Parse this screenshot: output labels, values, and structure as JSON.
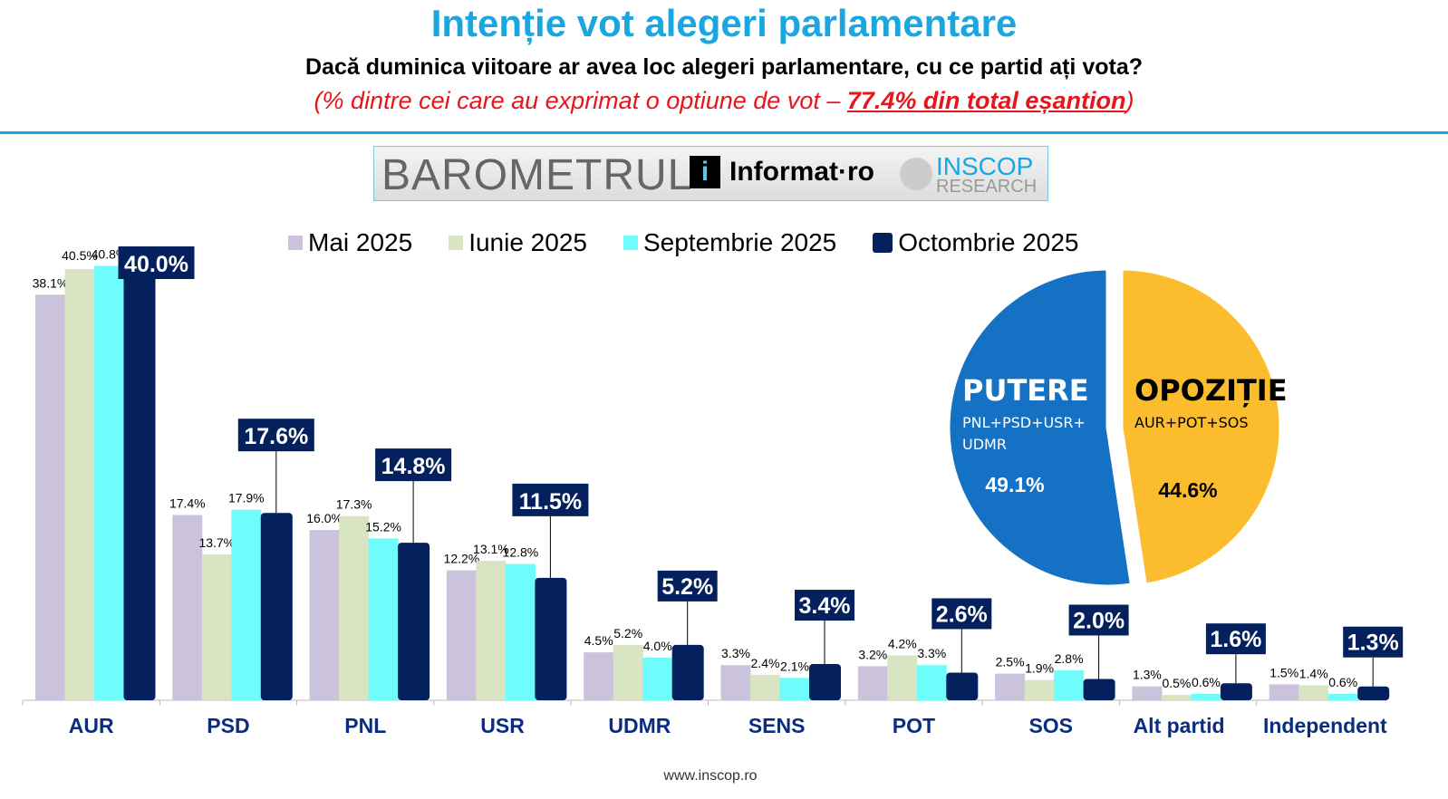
{
  "header": {
    "title": "Intenție vot alegeri parlamentare",
    "subtitle": "Dacă duminica viitoare ar avea loc alegeri parlamentare, cu ce partid ați vota?",
    "note_prefix": "(% dintre cei care au exprimat o optiune de vot – ",
    "note_highlight": "77.4% din total eșantion",
    "note_suffix": ")"
  },
  "banner": {
    "barometrul": "BAROMETRUL",
    "informat": "Informat·ro",
    "inscop": "INSCOP",
    "research": "RESEARCH"
  },
  "footer": "www.inscop.ro",
  "chart_data": [
    {
      "type": "bar",
      "categories": [
        "AUR",
        "PSD",
        "PNL",
        "USR",
        "UDMR",
        "SENS",
        "POT",
        "SOS",
        "Alt partid",
        "Independent"
      ],
      "series": [
        {
          "name": "Mai 2025",
          "color": "#cbc3dc",
          "values": [
            38.1,
            17.4,
            16.0,
            12.2,
            4.5,
            3.3,
            3.2,
            2.5,
            1.3,
            1.5
          ]
        },
        {
          "name": "Iunie 2025",
          "color": "#d9e4c3",
          "values": [
            40.5,
            13.7,
            17.3,
            13.1,
            5.2,
            2.4,
            4.2,
            1.9,
            0.5,
            1.4
          ]
        },
        {
          "name": "Septembrie 2025",
          "color": "#6ffcfd",
          "values": [
            40.8,
            17.9,
            15.2,
            12.8,
            4.0,
            2.1,
            3.3,
            2.8,
            0.6,
            0.6
          ]
        },
        {
          "name": "Octombrie 2025",
          "color": "#04215d",
          "values": [
            40.0,
            17.6,
            14.8,
            11.5,
            5.2,
            3.4,
            2.6,
            2.0,
            1.6,
            1.3
          ]
        }
      ],
      "ylim": [
        0,
        42
      ],
      "legend": "top"
    },
    {
      "type": "pie",
      "slices": [
        {
          "label": "PUTERE",
          "sub": "PNL+PSD+USR+\nUDMR",
          "value": 49.1,
          "display": "49.1%",
          "color": "#1471c3"
        },
        {
          "label": "OPOZIȚIE",
          "sub": "AUR+POT+SOS",
          "value": 44.6,
          "display": "44.6%",
          "color": "#fbbd2d"
        }
      ]
    }
  ]
}
